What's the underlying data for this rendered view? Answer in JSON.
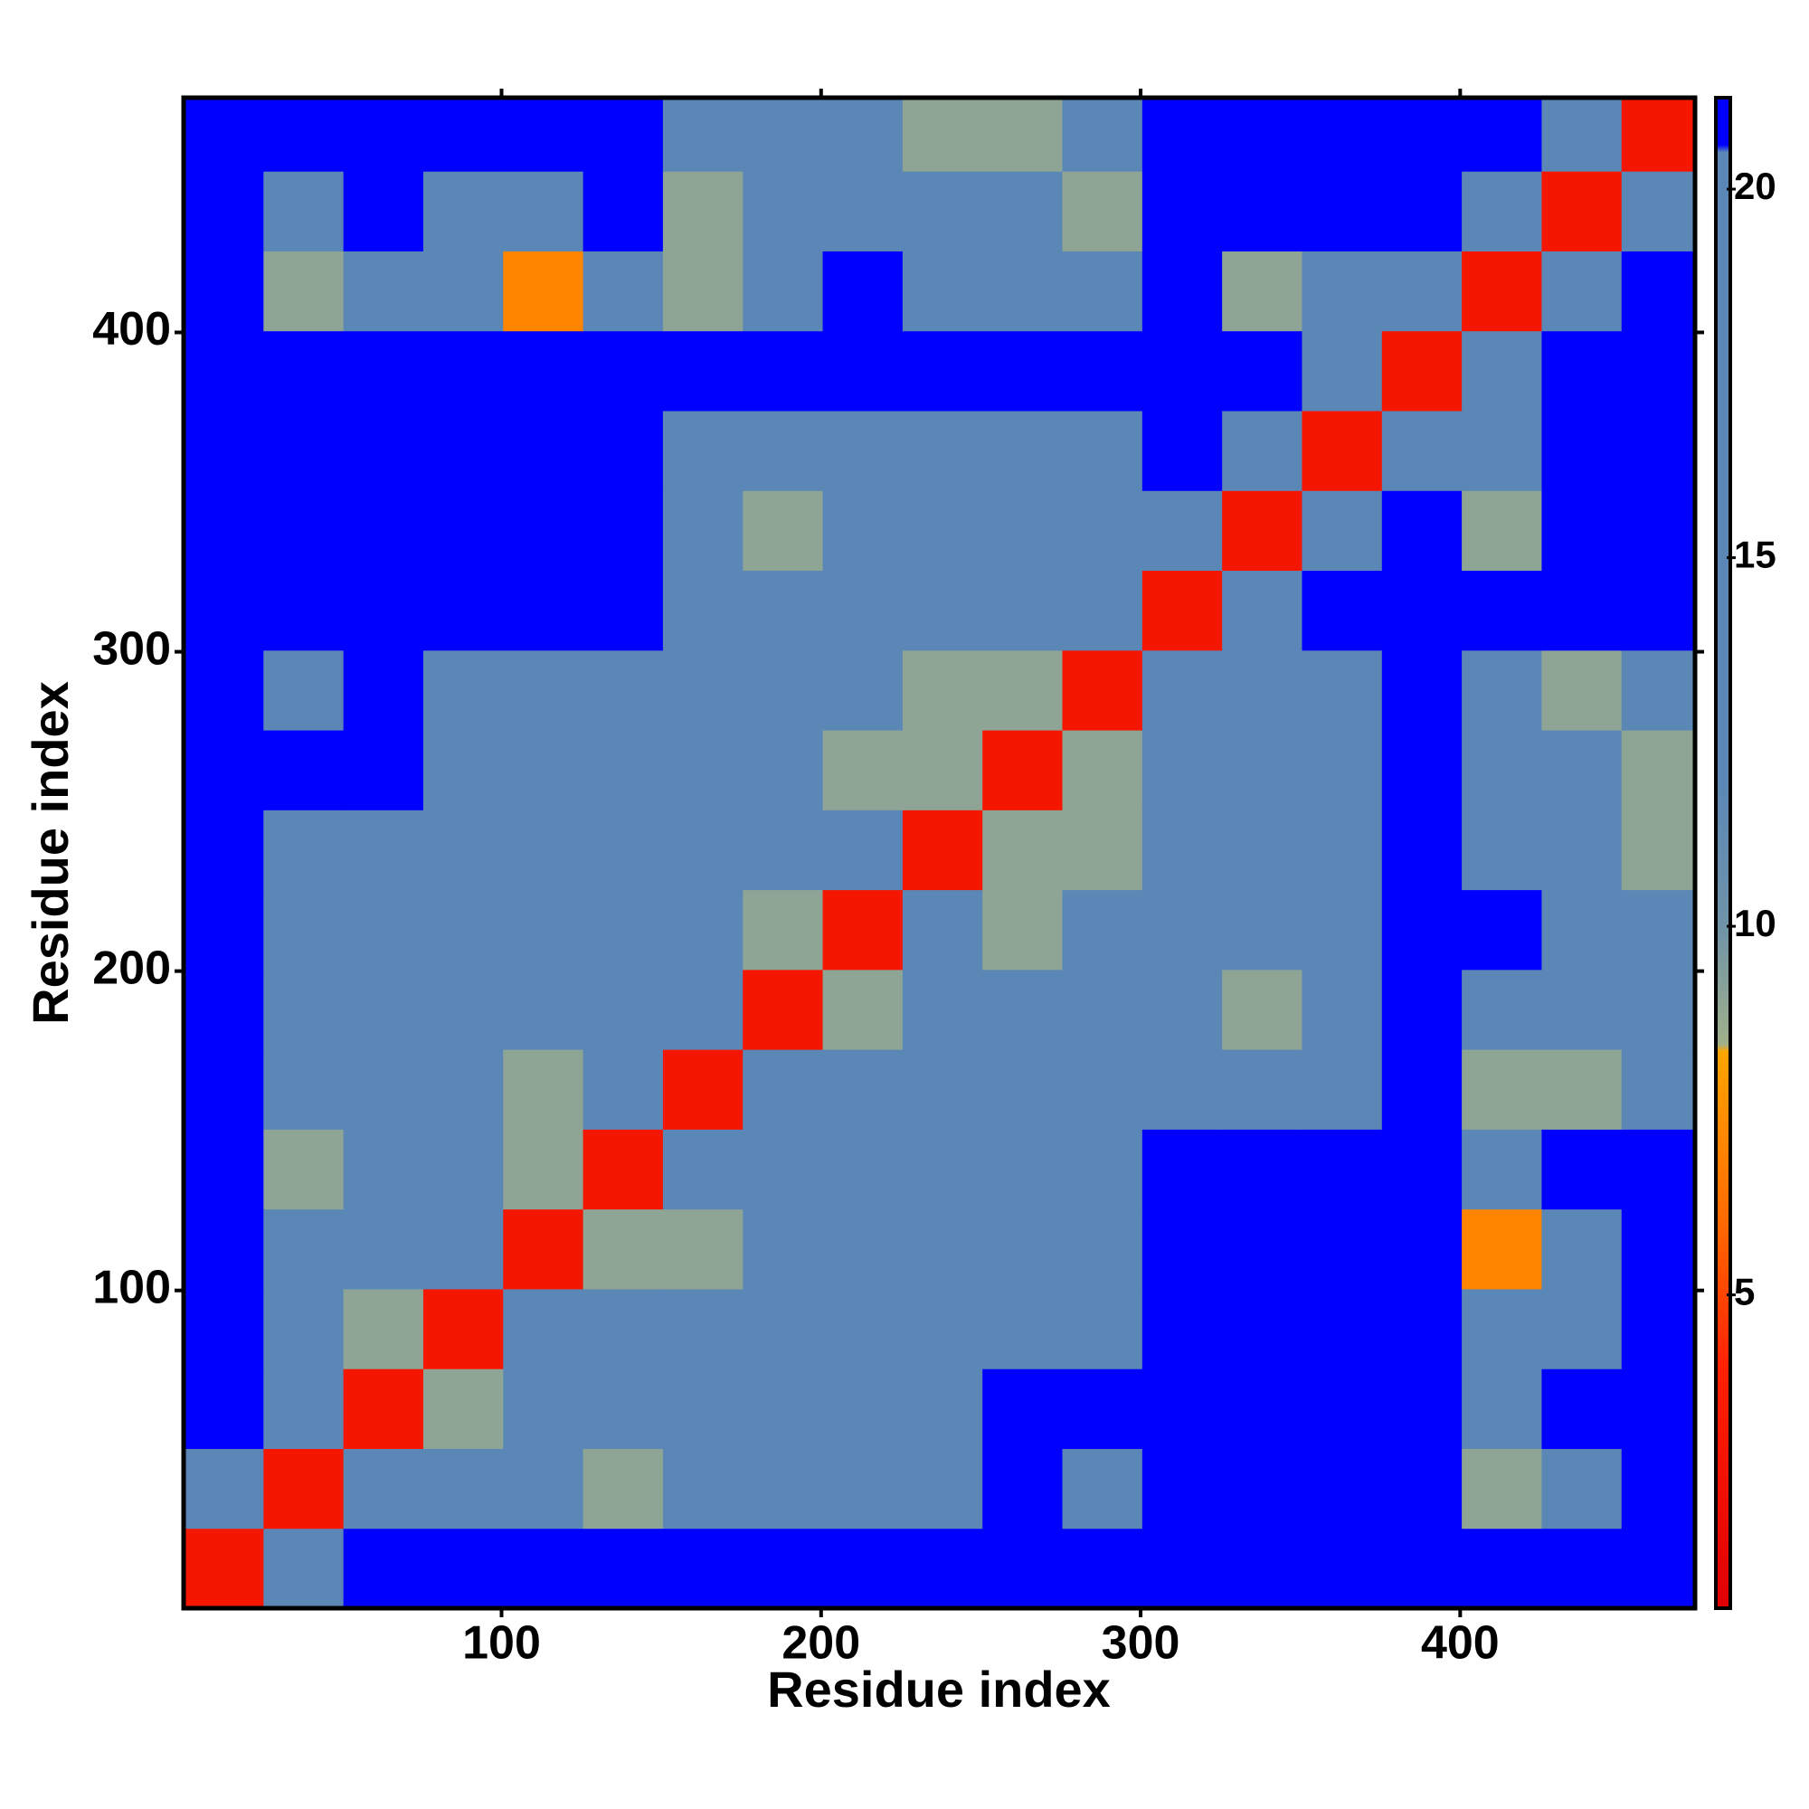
{
  "chart_data": {
    "type": "heatmap",
    "xlabel": "Residue index",
    "ylabel": "Residue index",
    "xbins": [
      0.5,
      25.5,
      50.5,
      75.5,
      100.5,
      125.5,
      150.5,
      175.5,
      200.5,
      225.5,
      250.5,
      275.5,
      300.5,
      325.5,
      350.5,
      375.5,
      400.5,
      425.5,
      450.5,
      473.5
    ],
    "ybins": [
      0.5,
      25.5,
      50.5,
      75.5,
      100.5,
      125.5,
      150.5,
      175.5,
      200.5,
      225.5,
      250.5,
      275.5,
      300.5,
      325.5,
      350.5,
      375.5,
      400.5,
      425.5,
      450.5,
      473.5
    ],
    "values": [
      [
        3,
        15,
        21,
        21,
        21,
        21,
        21,
        21,
        21,
        21,
        21,
        21,
        21,
        21,
        21,
        21,
        21,
        21,
        21
      ],
      [
        15,
        3,
        15,
        15,
        15,
        9,
        15,
        15,
        15,
        15,
        21,
        15,
        21,
        21,
        21,
        21,
        9,
        15,
        21
      ],
      [
        21,
        15,
        3,
        9,
        15,
        15,
        15,
        15,
        15,
        15,
        21,
        21,
        21,
        21,
        21,
        21,
        15,
        21,
        21
      ],
      [
        21,
        15,
        9,
        3,
        15,
        15,
        15,
        15,
        15,
        15,
        15,
        15,
        21,
        21,
        21,
        21,
        15,
        15,
        21
      ],
      [
        21,
        15,
        15,
        15,
        3,
        9,
        9,
        15,
        15,
        15,
        15,
        15,
        21,
        21,
        21,
        21,
        7,
        15,
        21
      ],
      [
        21,
        9,
        15,
        15,
        9,
        3,
        15,
        15,
        15,
        15,
        15,
        15,
        21,
        21,
        21,
        21,
        15,
        21,
        21
      ],
      [
        21,
        15,
        15,
        15,
        9,
        15,
        3,
        15,
        15,
        15,
        15,
        15,
        15,
        15,
        15,
        21,
        9,
        9,
        15
      ],
      [
        21,
        15,
        15,
        15,
        15,
        15,
        15,
        3,
        9,
        15,
        15,
        15,
        15,
        9,
        15,
        21,
        15,
        15,
        15
      ],
      [
        21,
        15,
        15,
        15,
        15,
        15,
        15,
        9,
        3,
        15,
        9,
        15,
        15,
        15,
        15,
        21,
        21,
        15,
        15
      ],
      [
        21,
        15,
        15,
        15,
        15,
        15,
        15,
        15,
        15,
        3,
        9,
        9,
        15,
        15,
        15,
        21,
        15,
        15,
        9
      ],
      [
        21,
        21,
        21,
        15,
        15,
        15,
        15,
        15,
        9,
        9,
        3,
        9,
        15,
        15,
        15,
        21,
        15,
        15,
        9
      ],
      [
        21,
        15,
        21,
        15,
        15,
        15,
        15,
        15,
        15,
        9,
        9,
        3,
        15,
        15,
        15,
        21,
        15,
        9,
        15
      ],
      [
        21,
        21,
        21,
        21,
        21,
        21,
        15,
        15,
        15,
        15,
        15,
        15,
        3,
        15,
        21,
        21,
        21,
        21,
        21
      ],
      [
        21,
        21,
        21,
        21,
        21,
        21,
        15,
        9,
        15,
        15,
        15,
        15,
        15,
        3,
        15,
        21,
        9,
        21,
        21
      ],
      [
        21,
        21,
        21,
        21,
        21,
        21,
        15,
        15,
        15,
        15,
        15,
        15,
        21,
        15,
        3,
        15,
        15,
        21,
        21
      ],
      [
        21,
        21,
        21,
        21,
        21,
        21,
        21,
        21,
        21,
        21,
        21,
        21,
        21,
        21,
        15,
        3,
        15,
        21,
        21
      ],
      [
        21,
        9,
        15,
        15,
        7,
        15,
        9,
        15,
        21,
        15,
        15,
        15,
        21,
        9,
        15,
        15,
        3,
        15,
        21
      ],
      [
        21,
        15,
        21,
        15,
        15,
        21,
        9,
        15,
        15,
        15,
        15,
        9,
        21,
        21,
        21,
        21,
        15,
        3,
        15
      ],
      [
        21,
        21,
        21,
        21,
        21,
        21,
        15,
        15,
        15,
        9,
        9,
        15,
        21,
        21,
        21,
        21,
        21,
        15,
        3
      ]
    ],
    "xlim": [
      0.5,
      473.5
    ],
    "ylim": [
      0.5,
      473.5
    ],
    "xticks": [
      100,
      200,
      300,
      400
    ],
    "yticks": [
      100,
      200,
      300,
      400
    ],
    "clim": [
      0.75,
      21.24
    ],
    "cticks": [
      5,
      10,
      15,
      20
    ],
    "colorscale": [
      [
        0.75,
        "#e00000"
      ],
      [
        4,
        "#ff2000"
      ],
      [
        6,
        "#ff6a00"
      ],
      [
        8.3,
        "#ffa500"
      ],
      [
        8.4,
        "#a0b08a"
      ],
      [
        10,
        "#6f93a8"
      ],
      [
        12,
        "#5b87b7"
      ],
      [
        20.5,
        "#5b87b7"
      ],
      [
        20.6,
        "#0000ff"
      ],
      [
        21.24,
        "#0000ff"
      ]
    ]
  }
}
